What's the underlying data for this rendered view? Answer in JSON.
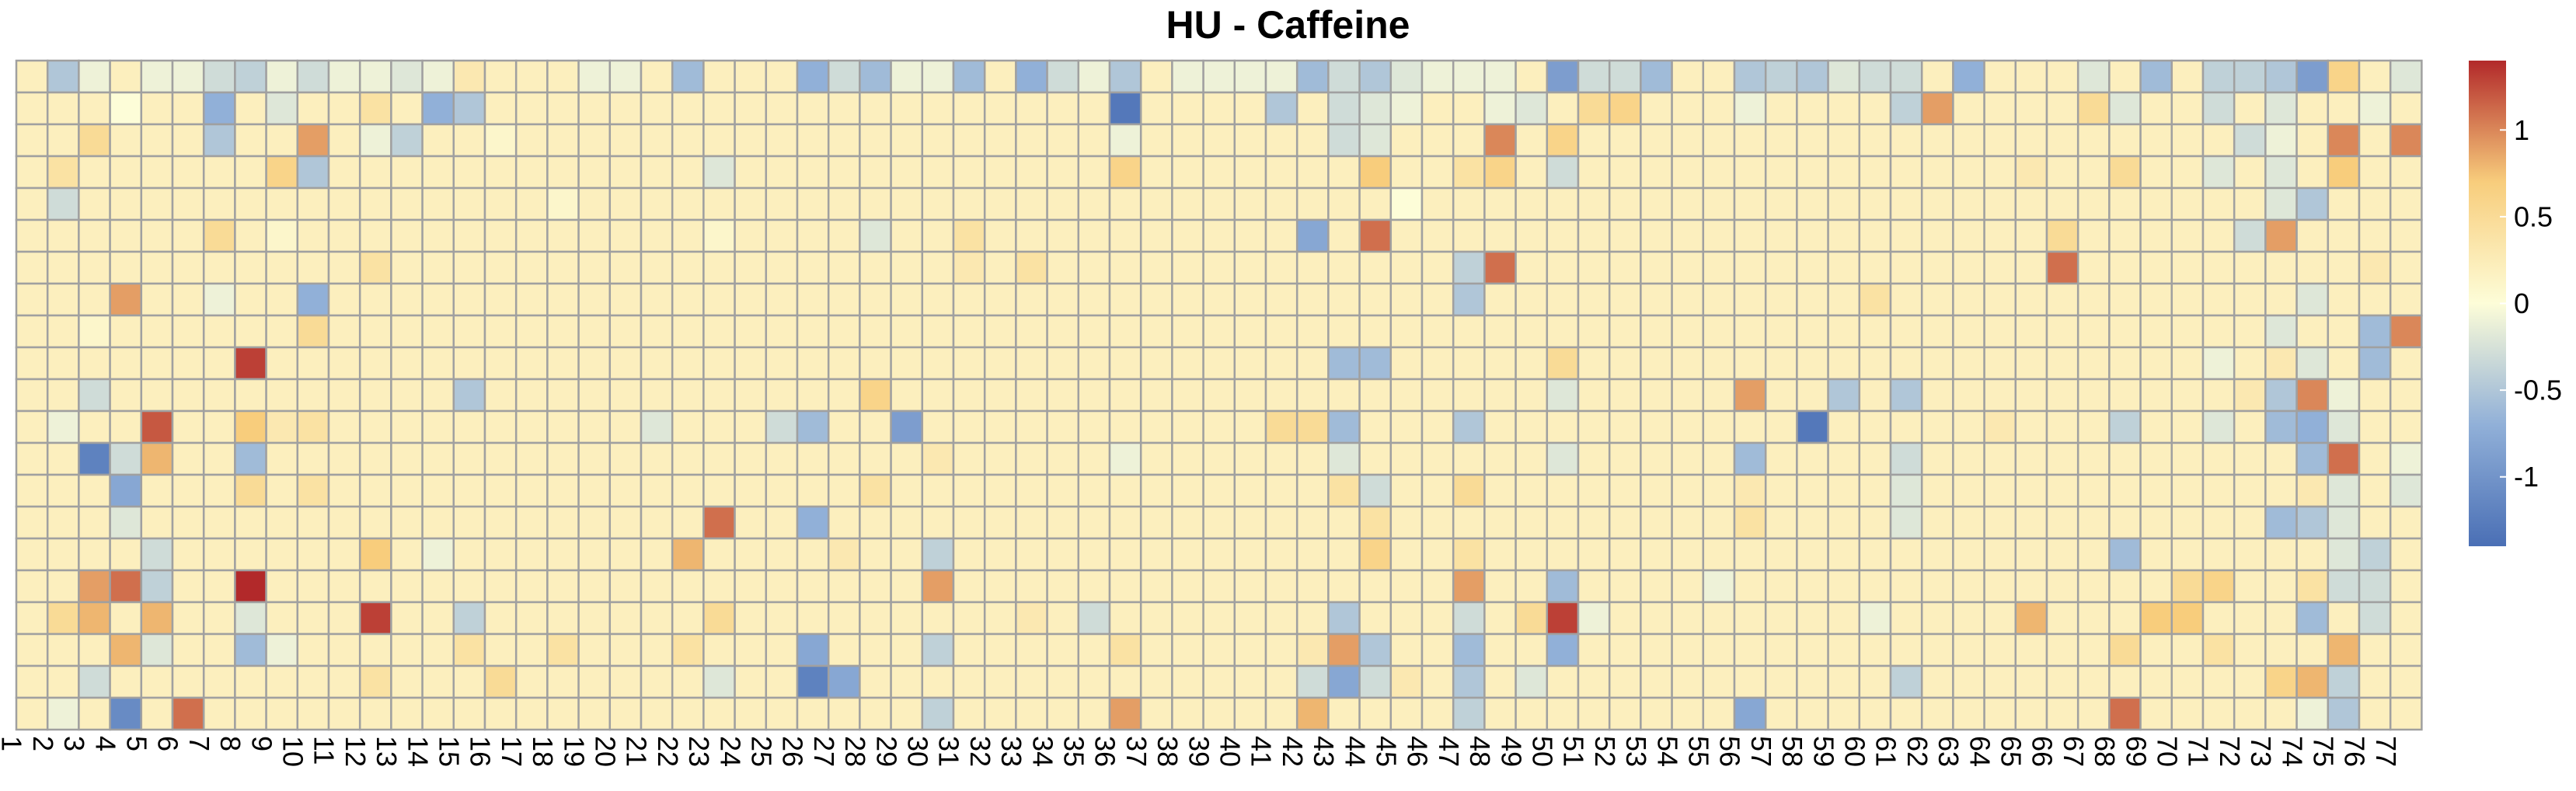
{
  "chart_data": {
    "type": "heatmap",
    "title": "HU - Caffeine",
    "columns": [
      "1",
      "2",
      "3",
      "4",
      "5",
      "6",
      "7",
      "8",
      "9",
      "10",
      "11",
      "12",
      "13",
      "14",
      "15",
      "16",
      "17",
      "18",
      "19",
      "20",
      "21",
      "22",
      "23",
      "24",
      "25",
      "26",
      "27",
      "28",
      "29",
      "30",
      "31",
      "32",
      "33",
      "34",
      "35",
      "36",
      "37",
      "38",
      "39",
      "40",
      "41",
      "42",
      "43",
      "44",
      "45",
      "46",
      "47",
      "48",
      "49",
      "50",
      "51",
      "52",
      "53",
      "54",
      "55",
      "56",
      "57",
      "58",
      "59",
      "60",
      "61",
      "62",
      "63",
      "64",
      "65",
      "66",
      "67",
      "68",
      "69",
      "70",
      "71",
      "72",
      "73",
      "74",
      "75",
      "76",
      "77"
    ],
    "rows": 21,
    "value_range": [
      -1.4,
      1.4
    ],
    "legend": {
      "position": "right",
      "ticks": [
        "1",
        "0.5",
        "0",
        "-0.5",
        "-1"
      ],
      "tick_values": [
        1,
        0.5,
        0,
        -0.5,
        -1
      ],
      "colors": [
        "#4a6fb5",
        "#91b0d8",
        "#fdfdd8",
        "#f8cd7c",
        "#b2292a"
      ]
    },
    "grid_color": "#a0a0a0",
    "default_value": 0.2,
    "cells": [
      [
        0,
        1,
        -0.5
      ],
      [
        0,
        2,
        -0.1
      ],
      [
        0,
        4,
        -0.1
      ],
      [
        0,
        5,
        -0.1
      ],
      [
        0,
        6,
        -0.3
      ],
      [
        0,
        7,
        -0.4
      ],
      [
        0,
        8,
        -0.1
      ],
      [
        0,
        9,
        -0.3
      ],
      [
        0,
        10,
        -0.1
      ],
      [
        0,
        11,
        -0.1
      ],
      [
        0,
        12,
        -0.2
      ],
      [
        0,
        13,
        -0.1
      ],
      [
        0,
        14,
        0.3
      ],
      [
        0,
        18,
        -0.1
      ],
      [
        0,
        19,
        -0.1
      ],
      [
        0,
        21,
        -0.6
      ],
      [
        0,
        25,
        -0.7
      ],
      [
        0,
        26,
        -0.3
      ],
      [
        0,
        27,
        -0.6
      ],
      [
        0,
        28,
        -0.1
      ],
      [
        0,
        29,
        -0.1
      ],
      [
        0,
        30,
        -0.6
      ],
      [
        0,
        32,
        -0.7
      ],
      [
        0,
        33,
        -0.3
      ],
      [
        0,
        34,
        -0.1
      ],
      [
        0,
        35,
        -0.5
      ],
      [
        0,
        37,
        -0.1
      ],
      [
        0,
        38,
        -0.1
      ],
      [
        0,
        39,
        -0.1
      ],
      [
        0,
        40,
        -0.1
      ],
      [
        0,
        41,
        -0.6
      ],
      [
        0,
        42,
        -0.3
      ],
      [
        0,
        43,
        -0.5
      ],
      [
        0,
        44,
        -0.2
      ],
      [
        0,
        45,
        -0.1
      ],
      [
        0,
        46,
        -0.1
      ],
      [
        0,
        47,
        -0.1
      ],
      [
        0,
        49,
        -0.9
      ],
      [
        0,
        50,
        -0.3
      ],
      [
        0,
        51,
        -0.3
      ],
      [
        0,
        52,
        -0.6
      ],
      [
        0,
        55,
        -0.5
      ],
      [
        0,
        56,
        -0.4
      ],
      [
        0,
        57,
        -0.5
      ],
      [
        0,
        58,
        -0.2
      ],
      [
        0,
        59,
        -0.3
      ],
      [
        0,
        60,
        -0.3
      ],
      [
        0,
        62,
        -0.7
      ],
      [
        0,
        66,
        -0.2
      ],
      [
        0,
        68,
        -0.6
      ],
      [
        0,
        70,
        -0.4
      ],
      [
        0,
        71,
        -0.4
      ],
      [
        0,
        72,
        -0.5
      ],
      [
        0,
        73,
        -0.9
      ],
      [
        0,
        74,
        0.6
      ],
      [
        0,
        76,
        -0.2
      ],
      [
        1,
        3,
        0.0
      ],
      [
        1,
        6,
        -0.7
      ],
      [
        1,
        8,
        -0.2
      ],
      [
        1,
        11,
        0.4
      ],
      [
        1,
        13,
        -0.7
      ],
      [
        1,
        14,
        -0.5
      ],
      [
        1,
        35,
        -1.3
      ],
      [
        1,
        40,
        -0.5
      ],
      [
        1,
        42,
        -0.3
      ],
      [
        1,
        43,
        -0.2
      ],
      [
        1,
        44,
        -0.1
      ],
      [
        1,
        47,
        -0.1
      ],
      [
        1,
        48,
        -0.2
      ],
      [
        1,
        50,
        0.5
      ],
      [
        1,
        51,
        0.6
      ],
      [
        1,
        55,
        -0.1
      ],
      [
        1,
        60,
        -0.4
      ],
      [
        1,
        61,
        0.9
      ],
      [
        1,
        66,
        0.5
      ],
      [
        1,
        67,
        -0.2
      ],
      [
        1,
        70,
        -0.3
      ],
      [
        1,
        72,
        -0.2
      ],
      [
        1,
        75,
        -0.1
      ],
      [
        2,
        2,
        0.5
      ],
      [
        2,
        6,
        -0.5
      ],
      [
        2,
        9,
        0.9
      ],
      [
        2,
        11,
        -0.1
      ],
      [
        2,
        12,
        -0.4
      ],
      [
        2,
        15,
        0.1
      ],
      [
        2,
        35,
        -0.1
      ],
      [
        2,
        42,
        -0.3
      ],
      [
        2,
        43,
        -0.2
      ],
      [
        2,
        47,
        1.0
      ],
      [
        2,
        49,
        0.6
      ],
      [
        2,
        71,
        -0.3
      ],
      [
        2,
        72,
        -0.1
      ],
      [
        2,
        74,
        1.0
      ],
      [
        2,
        76,
        1.0
      ],
      [
        3,
        1,
        0.4
      ],
      [
        3,
        8,
        0.6
      ],
      [
        3,
        9,
        -0.5
      ],
      [
        3,
        10,
        0.2
      ],
      [
        3,
        22,
        -0.2
      ],
      [
        3,
        35,
        0.6
      ],
      [
        3,
        43,
        0.7
      ],
      [
        3,
        46,
        0.4
      ],
      [
        3,
        47,
        0.6
      ],
      [
        3,
        49,
        -0.3
      ],
      [
        3,
        64,
        0.3
      ],
      [
        3,
        67,
        0.5
      ],
      [
        3,
        70,
        -0.2
      ],
      [
        3,
        72,
        -0.2
      ],
      [
        3,
        74,
        0.7
      ],
      [
        4,
        1,
        -0.3
      ],
      [
        4,
        17,
        0.1
      ],
      [
        4,
        44,
        0.0
      ],
      [
        4,
        72,
        -0.2
      ],
      [
        4,
        73,
        -0.5
      ],
      [
        5,
        6,
        0.5
      ],
      [
        5,
        8,
        0.1
      ],
      [
        5,
        22,
        0.1
      ],
      [
        5,
        27,
        -0.2
      ],
      [
        5,
        30,
        0.4
      ],
      [
        5,
        41,
        -0.8
      ],
      [
        5,
        43,
        1.1
      ],
      [
        5,
        65,
        0.5
      ],
      [
        5,
        71,
        -0.3
      ],
      [
        5,
        72,
        0.9
      ],
      [
        6,
        11,
        0.4
      ],
      [
        6,
        30,
        0.3
      ],
      [
        6,
        32,
        0.4
      ],
      [
        6,
        46,
        -0.4
      ],
      [
        6,
        47,
        1.1
      ],
      [
        6,
        65,
        1.1
      ],
      [
        6,
        70,
        0.2
      ],
      [
        6,
        75,
        0.3
      ],
      [
        7,
        3,
        0.9
      ],
      [
        7,
        6,
        -0.1
      ],
      [
        7,
        9,
        -0.7
      ],
      [
        7,
        46,
        -0.5
      ],
      [
        7,
        59,
        0.4
      ],
      [
        7,
        73,
        -0.2
      ],
      [
        8,
        2,
        0.1
      ],
      [
        8,
        9,
        0.5
      ],
      [
        8,
        72,
        -0.2
      ],
      [
        8,
        74,
        0.2
      ],
      [
        8,
        75,
        -0.6
      ],
      [
        8,
        76,
        1.0
      ],
      [
        9,
        7,
        1.3
      ],
      [
        9,
        42,
        -0.6
      ],
      [
        9,
        43,
        -0.6
      ],
      [
        9,
        49,
        0.5
      ],
      [
        9,
        70,
        -0.1
      ],
      [
        9,
        72,
        0.3
      ],
      [
        9,
        73,
        -0.2
      ],
      [
        9,
        75,
        -0.6
      ],
      [
        10,
        2,
        -0.3
      ],
      [
        10,
        14,
        -0.5
      ],
      [
        10,
        27,
        0.6
      ],
      [
        10,
        49,
        -0.2
      ],
      [
        10,
        55,
        0.9
      ],
      [
        10,
        58,
        -0.5
      ],
      [
        10,
        60,
        -0.5
      ],
      [
        10,
        71,
        0.3
      ],
      [
        10,
        72,
        -0.5
      ],
      [
        10,
        73,
        1.0
      ],
      [
        10,
        74,
        -0.1
      ],
      [
        11,
        1,
        -0.1
      ],
      [
        11,
        4,
        1.2
      ],
      [
        11,
        7,
        0.7
      ],
      [
        11,
        8,
        0.3
      ],
      [
        11,
        9,
        0.4
      ],
      [
        11,
        20,
        -0.2
      ],
      [
        11,
        24,
        -0.3
      ],
      [
        11,
        25,
        -0.6
      ],
      [
        11,
        28,
        -0.9
      ],
      [
        11,
        40,
        0.5
      ],
      [
        11,
        41,
        0.5
      ],
      [
        11,
        42,
        -0.6
      ],
      [
        11,
        46,
        -0.5
      ],
      [
        11,
        57,
        -1.3
      ],
      [
        11,
        63,
        0.3
      ],
      [
        11,
        67,
        -0.4
      ],
      [
        11,
        70,
        -0.2
      ],
      [
        11,
        72,
        -0.6
      ],
      [
        11,
        73,
        -0.7
      ],
      [
        11,
        74,
        -0.2
      ],
      [
        12,
        2,
        -1.2
      ],
      [
        12,
        3,
        -0.3
      ],
      [
        12,
        4,
        0.8
      ],
      [
        12,
        7,
        -0.6
      ],
      [
        12,
        29,
        0.3
      ],
      [
        12,
        35,
        -0.1
      ],
      [
        12,
        42,
        -0.2
      ],
      [
        12,
        49,
        -0.2
      ],
      [
        12,
        55,
        -0.6
      ],
      [
        12,
        60,
        -0.3
      ],
      [
        12,
        73,
        -0.6
      ],
      [
        12,
        74,
        1.1
      ],
      [
        12,
        76,
        -0.1
      ],
      [
        13,
        3,
        -0.8
      ],
      [
        13,
        7,
        0.5
      ],
      [
        13,
        9,
        0.4
      ],
      [
        13,
        27,
        0.4
      ],
      [
        13,
        42,
        0.4
      ],
      [
        13,
        43,
        -0.3
      ],
      [
        13,
        46,
        0.5
      ],
      [
        13,
        55,
        0.3
      ],
      [
        13,
        60,
        -0.2
      ],
      [
        13,
        73,
        0.3
      ],
      [
        13,
        74,
        -0.2
      ],
      [
        13,
        76,
        -0.2
      ],
      [
        14,
        3,
        -0.2
      ],
      [
        14,
        22,
        1.1
      ],
      [
        14,
        25,
        -0.7
      ],
      [
        14,
        43,
        0.4
      ],
      [
        14,
        55,
        0.4
      ],
      [
        14,
        60,
        -0.2
      ],
      [
        14,
        72,
        -0.6
      ],
      [
        14,
        73,
        -0.5
      ],
      [
        14,
        74,
        -0.2
      ],
      [
        15,
        4,
        -0.3
      ],
      [
        15,
        11,
        0.7
      ],
      [
        15,
        13,
        -0.1
      ],
      [
        15,
        21,
        0.8
      ],
      [
        15,
        26,
        0.3
      ],
      [
        15,
        29,
        -0.4
      ],
      [
        15,
        43,
        0.6
      ],
      [
        15,
        46,
        0.4
      ],
      [
        15,
        67,
        -0.6
      ],
      [
        15,
        74,
        -0.2
      ],
      [
        15,
        75,
        -0.4
      ],
      [
        16,
        2,
        0.9
      ],
      [
        16,
        3,
        1.1
      ],
      [
        16,
        4,
        -0.4
      ],
      [
        16,
        7,
        1.4
      ],
      [
        16,
        29,
        0.9
      ],
      [
        16,
        46,
        0.9
      ],
      [
        16,
        49,
        -0.6
      ],
      [
        16,
        54,
        -0.1
      ],
      [
        16,
        69,
        0.5
      ],
      [
        16,
        70,
        0.6
      ],
      [
        16,
        73,
        0.4
      ],
      [
        16,
        74,
        -0.3
      ],
      [
        16,
        75,
        -0.3
      ],
      [
        17,
        1,
        0.5
      ],
      [
        17,
        2,
        0.8
      ],
      [
        17,
        4,
        0.8
      ],
      [
        17,
        7,
        -0.2
      ],
      [
        17,
        11,
        1.3
      ],
      [
        17,
        14,
        -0.4
      ],
      [
        17,
        22,
        0.5
      ],
      [
        17,
        32,
        0.3
      ],
      [
        17,
        34,
        -0.3
      ],
      [
        17,
        42,
        -0.5
      ],
      [
        17,
        46,
        -0.3
      ],
      [
        17,
        48,
        0.5
      ],
      [
        17,
        49,
        1.3
      ],
      [
        17,
        50,
        -0.1
      ],
      [
        17,
        59,
        -0.1
      ],
      [
        17,
        64,
        0.8
      ],
      [
        17,
        68,
        0.7
      ],
      [
        17,
        69,
        0.7
      ],
      [
        17,
        73,
        -0.6
      ],
      [
        17,
        75,
        -0.3
      ],
      [
        18,
        3,
        0.8
      ],
      [
        18,
        4,
        -0.2
      ],
      [
        18,
        7,
        -0.6
      ],
      [
        18,
        8,
        -0.1
      ],
      [
        18,
        14,
        0.4
      ],
      [
        18,
        17,
        0.4
      ],
      [
        18,
        21,
        0.4
      ],
      [
        18,
        25,
        -0.8
      ],
      [
        18,
        29,
        -0.4
      ],
      [
        18,
        35,
        0.4
      ],
      [
        18,
        41,
        0.3
      ],
      [
        18,
        42,
        0.9
      ],
      [
        18,
        43,
        -0.5
      ],
      [
        18,
        46,
        -0.6
      ],
      [
        18,
        49,
        -0.7
      ],
      [
        18,
        67,
        0.5
      ],
      [
        18,
        70,
        0.4
      ],
      [
        18,
        74,
        0.8
      ],
      [
        19,
        2,
        -0.3
      ],
      [
        19,
        11,
        0.4
      ],
      [
        19,
        15,
        0.5
      ],
      [
        19,
        22,
        -0.2
      ],
      [
        19,
        25,
        -1.2
      ],
      [
        19,
        26,
        -0.8
      ],
      [
        19,
        41,
        -0.3
      ],
      [
        19,
        42,
        -0.8
      ],
      [
        19,
        43,
        -0.3
      ],
      [
        19,
        44,
        0.3
      ],
      [
        19,
        46,
        -0.5
      ],
      [
        19,
        48,
        -0.2
      ],
      [
        19,
        60,
        -0.4
      ],
      [
        19,
        72,
        0.6
      ],
      [
        19,
        73,
        0.8
      ],
      [
        19,
        74,
        -0.4
      ],
      [
        20,
        1,
        -0.1
      ],
      [
        20,
        3,
        -1.1
      ],
      [
        20,
        5,
        1.1
      ],
      [
        20,
        29,
        -0.4
      ],
      [
        20,
        35,
        0.9
      ],
      [
        20,
        41,
        0.8
      ],
      [
        20,
        46,
        -0.4
      ],
      [
        20,
        55,
        -0.8
      ],
      [
        20,
        67,
        1.1
      ],
      [
        20,
        73,
        -0.1
      ],
      [
        20,
        74,
        -0.5
      ]
    ]
  }
}
